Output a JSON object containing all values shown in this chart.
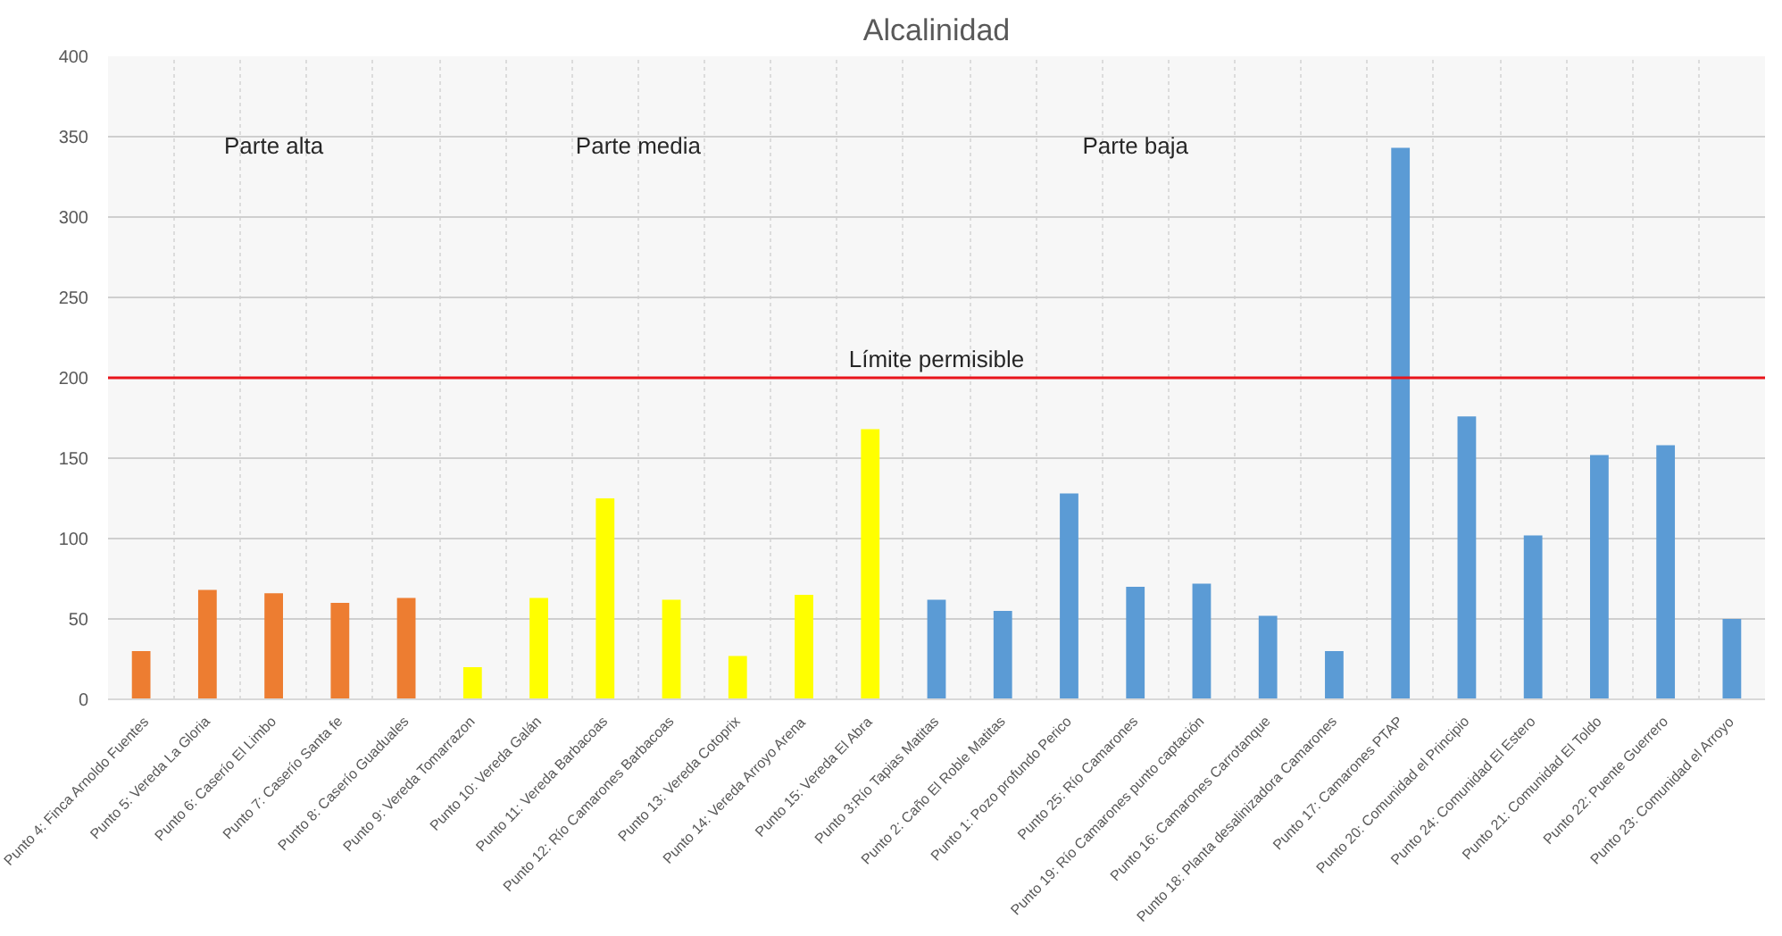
{
  "chart_data": {
    "type": "bar",
    "title": "Alcalinidad",
    "categories": [
      "Punto 4: Finca Arnoldo Fuentes",
      "Punto 5: Vereda La Gloria",
      "Punto 6: Caserío El Limbo",
      "Punto 7: Caserío Santa fe",
      "Punto 8: Caserío Guaduales",
      "Punto 9: Vereda Tomarrazon",
      "Punto 10: Vereda Galán",
      "Punto 11: Vereda Barbacoas",
      "Punto 12: Río Camarones Barbacoas",
      "Punto 13: Vereda Cotoprix",
      "Punto 14: Vereda Arroyo Arena",
      "Punto 15: Vereda El Abra",
      "Punto 3:Río Tapias Matitas",
      "Punto 2: Caño El Roble Matitas",
      "Punto 1: Pozo profundo Perico",
      "Punto 25: Río Camarones",
      "Punto 19: Río Camarones punto captación",
      "Punto 16: Camarones Carrotanque",
      "Punto 18: Planta desalinizadora Camarones",
      "Punto 17: Camarones PTAP",
      "Punto 20: Comunidad el Principio",
      "Punto 24: Comunidad El Estero",
      "Punto 21: Comunidad El Toldo",
      "Punto 22: Puente Guerrero",
      "Punto 23: Comunidad el Arroyo"
    ],
    "values": [
      30,
      68,
      66,
      60,
      63,
      20,
      63,
      125,
      62,
      27,
      65,
      168,
      62,
      55,
      128,
      70,
      72,
      52,
      30,
      343,
      176,
      102,
      152,
      158,
      50
    ],
    "colors": [
      "#ed7d31",
      "#ed7d31",
      "#ed7d31",
      "#ed7d31",
      "#ed7d31",
      "#ffff00",
      "#ffff00",
      "#ffff00",
      "#ffff00",
      "#ffff00",
      "#ffff00",
      "#ffff00",
      "#5b9bd5",
      "#5b9bd5",
      "#5b9bd5",
      "#5b9bd5",
      "#5b9bd5",
      "#5b9bd5",
      "#5b9bd5",
      "#5b9bd5",
      "#5b9bd5",
      "#5b9bd5",
      "#5b9bd5",
      "#5b9bd5",
      "#5b9bd5"
    ],
    "ylim": [
      0,
      400
    ],
    "yticks": [
      0,
      50,
      100,
      150,
      200,
      250,
      300,
      350,
      400
    ],
    "grid": true,
    "ref_lines": [
      {
        "axis": "y",
        "value": 200,
        "label": "Límite permisible",
        "color": "#e8141b"
      }
    ],
    "annotations": [
      "Parte alta",
      "Parte media",
      "Parte baja"
    ]
  }
}
